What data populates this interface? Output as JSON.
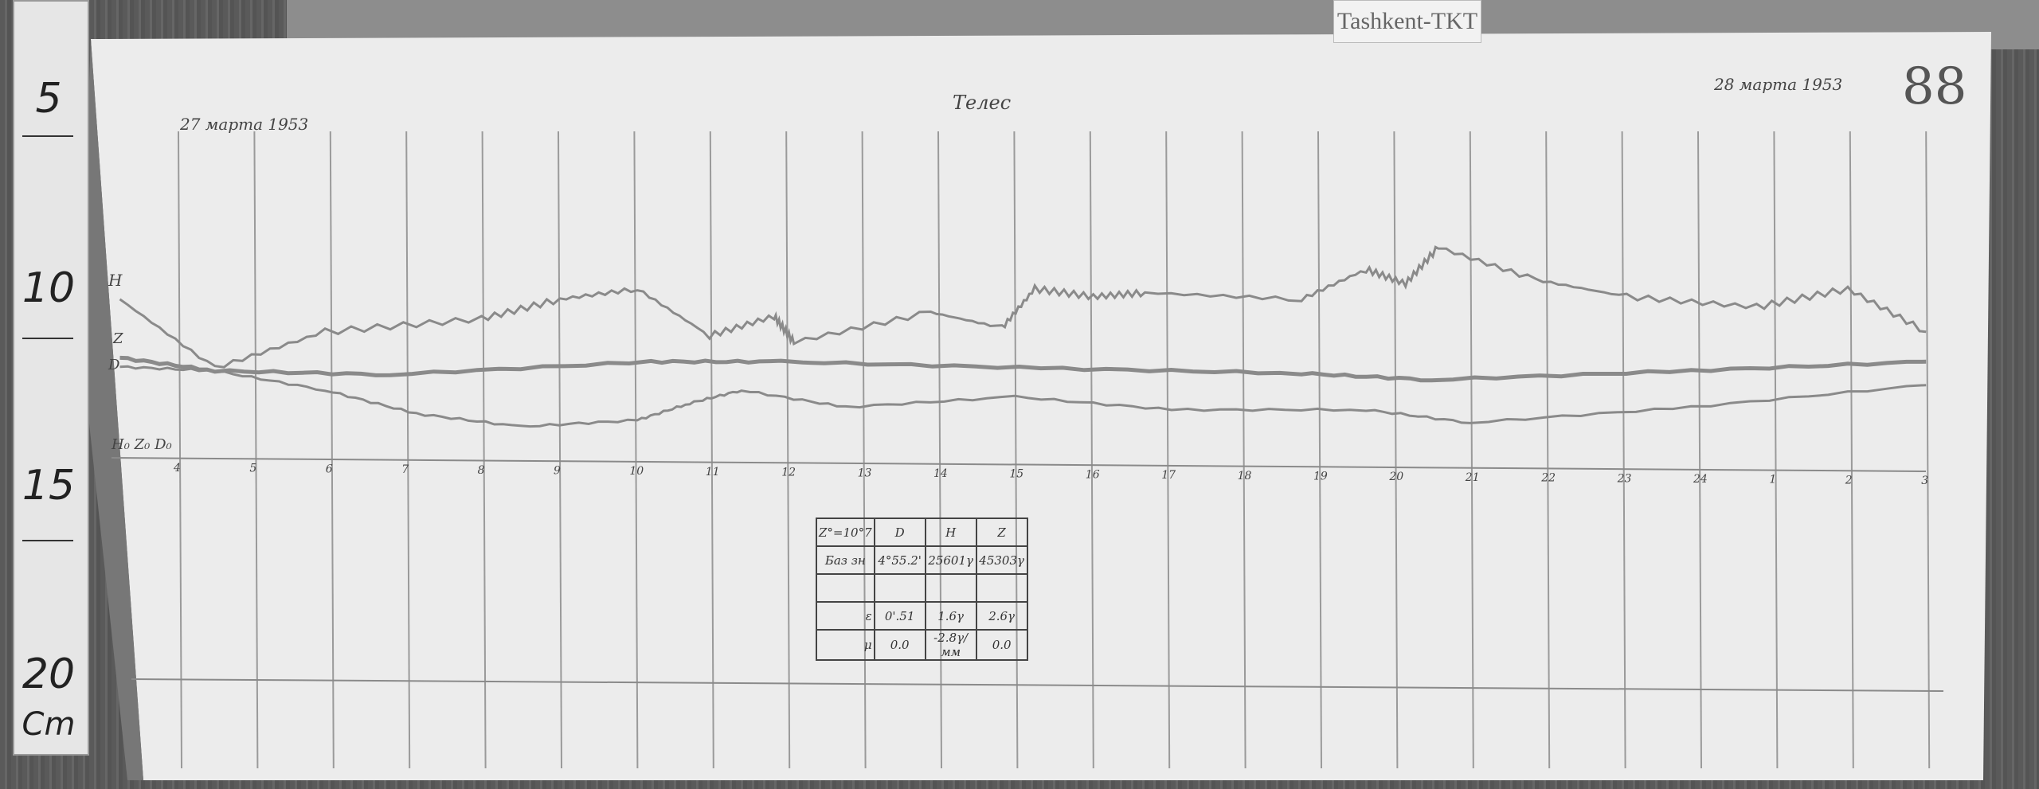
{
  "station_label": "Tashkent-TKT",
  "sheet_number": "88",
  "date_start": "27 марта 1953",
  "date_end": "28 марта 1953",
  "title": "Телес",
  "ruler": {
    "marks": [
      "5",
      "10",
      "15",
      "20"
    ],
    "unit": "Cm"
  },
  "trace_labels": {
    "H": "H",
    "Z": "Z",
    "D": "D",
    "baselines": "H₀ Z₀ D₀"
  },
  "colors": {
    "paper": "#ececec",
    "trace": "#8a8a8a",
    "grid": "#9a9a9a",
    "background": "#5e5e5e"
  },
  "table": {
    "header": [
      "Z°=10°7",
      "D",
      "H",
      "Z"
    ],
    "rows": [
      [
        "Баз зн",
        "4°55.2'",
        "25601γ",
        "45303γ"
      ],
      [
        "",
        "",
        "",
        ""
      ],
      [
        "ε",
        "0'.51",
        "1.6γ",
        "2.6γ"
      ],
      [
        "μ",
        "0.0",
        "-2.8γ/мм",
        "0.0"
      ]
    ]
  },
  "chart_data": {
    "type": "line",
    "title": "",
    "xlabel": "",
    "ylabel": "",
    "x_tick_labels": [
      "4",
      "5",
      "6",
      "7",
      "8",
      "9",
      "10",
      "11",
      "12",
      "13",
      "14",
      "15",
      "16",
      "17",
      "18",
      "19",
      "20",
      "21",
      "22",
      "23",
      "24",
      "1",
      "2",
      "3"
    ],
    "xlim": [
      3.2,
      27
    ],
    "grid": true,
    "series": [
      {
        "name": "H",
        "x": [
          3.23,
          4.48,
          5.93,
          7.99,
          9.02,
          10.04,
          10.99,
          11.84,
          12.1,
          13.9,
          14.84,
          15.27,
          16.04,
          16.72,
          18.78,
          19.63,
          20.15,
          20.58,
          21.86,
          23.06,
          24.77,
          25.97,
          27.0
        ],
        "y": [
          12.5,
          7.2,
          10.0,
          11.0,
          12.5,
          13.3,
          9.7,
          11.2,
          9.2,
          11.5,
          10.3,
          13.3,
          12.7,
          13.0,
          12.5,
          14.8,
          13.7,
          16.5,
          14.0,
          12.7,
          11.9,
          13.3,
          10.0
        ]
      },
      {
        "name": "Z",
        "x": [
          3.23,
          4.48,
          6.79,
          10.22,
          11.93,
          15.35,
          18.78,
          20.49,
          23.91,
          27.0
        ],
        "y": [
          8.0,
          7.0,
          6.7,
          7.7,
          7.7,
          7.2,
          6.8,
          6.3,
          7.0,
          7.7
        ]
      },
      {
        "name": "D",
        "x": [
          3.23,
          4.48,
          5.93,
          7.13,
          8.5,
          10.04,
          10.73,
          11.41,
          12.78,
          15.01,
          17.07,
          19.63,
          21.0,
          23.91,
          27.0
        ],
        "y": [
          7.3,
          7.0,
          5.5,
          3.7,
          2.7,
          3.2,
          4.5,
          5.5,
          4.2,
          5.0,
          4.0,
          4.0,
          3.0,
          4.2,
          5.9
        ]
      }
    ]
  }
}
